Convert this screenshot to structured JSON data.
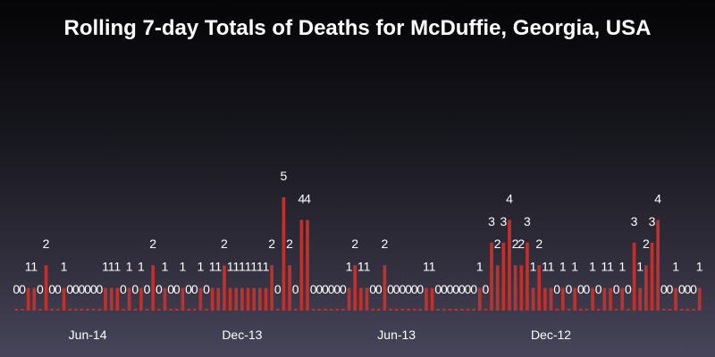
{
  "chart_data": {
    "type": "bar",
    "title": "Rolling 7-day Totals of Deaths for McDuffie, Georgia, USA",
    "xlabel": "",
    "ylabel": "",
    "ylim": [
      0,
      5
    ],
    "grid": false,
    "legend": "none",
    "x_order": "reverse-chronological",
    "bar_color": "#c0312b",
    "x_ticks": [
      {
        "label": "Jun-14",
        "index": 12
      },
      {
        "label": "Dec-13",
        "index": 38
      },
      {
        "label": "Jun-13",
        "index": 64
      },
      {
        "label": "Dec-12",
        "index": 90
      }
    ],
    "values": [
      0,
      0,
      1,
      1,
      0,
      2,
      0,
      0,
      1,
      0,
      0,
      0,
      0,
      0,
      0,
      1,
      1,
      1,
      0,
      1,
      0,
      1,
      0,
      2,
      0,
      1,
      0,
      0,
      1,
      0,
      0,
      1,
      0,
      1,
      1,
      2,
      1,
      1,
      1,
      1,
      1,
      1,
      1,
      2,
      0,
      5,
      2,
      0,
      4,
      4,
      0,
      0,
      0,
      0,
      0,
      0,
      1,
      2,
      1,
      1,
      0,
      0,
      2,
      0,
      0,
      0,
      0,
      0,
      0,
      1,
      1,
      0,
      0,
      0,
      0,
      0,
      0,
      0,
      1,
      0,
      3,
      2,
      3,
      4,
      2,
      2,
      3,
      1,
      2,
      1,
      1,
      0,
      1,
      0,
      1,
      0,
      0,
      1,
      0,
      1,
      1,
      0,
      1,
      0,
      3,
      1,
      2,
      3,
      4,
      0,
      0,
      1,
      0,
      0,
      0,
      1
    ]
  }
}
